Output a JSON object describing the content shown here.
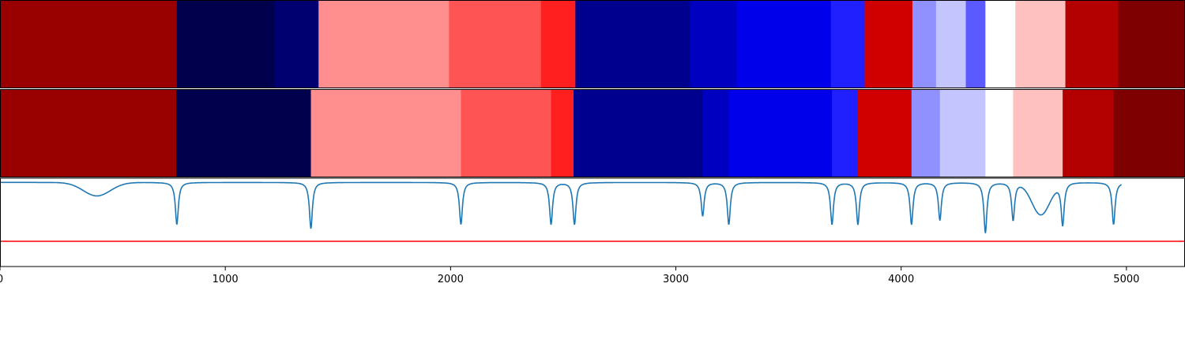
{
  "chart_data": {
    "type": "heatmap",
    "title": "",
    "xlabel": "",
    "ylabel": "",
    "xlim": [
      0,
      5260
    ],
    "x_ticks": [
      0,
      1000,
      2000,
      3000,
      4000,
      5000
    ],
    "x_tick_labels": [
      "0",
      "1000",
      "2000",
      "3000",
      "4000",
      "5000"
    ],
    "grid": false,
    "legend": "none",
    "tracks": [
      {
        "segments": [
          {
            "start": 0,
            "end": 785,
            "color": "#990000"
          },
          {
            "start": 785,
            "end": 1218,
            "color": "#00004c"
          },
          {
            "start": 1218,
            "end": 1414,
            "color": "#000070"
          },
          {
            "start": 1414,
            "end": 1993,
            "color": "#ff8e8e"
          },
          {
            "start": 1993,
            "end": 2401,
            "color": "#ff5454"
          },
          {
            "start": 2401,
            "end": 2554,
            "color": "#ff1f1f"
          },
          {
            "start": 2554,
            "end": 3062,
            "color": "#00008f"
          },
          {
            "start": 3062,
            "end": 3270,
            "color": "#0000c0"
          },
          {
            "start": 3270,
            "end": 3688,
            "color": "#0000ea"
          },
          {
            "start": 3688,
            "end": 3838,
            "color": "#2020ff"
          },
          {
            "start": 3838,
            "end": 4050,
            "color": "#d10000"
          },
          {
            "start": 4050,
            "end": 4155,
            "color": "#9090ff"
          },
          {
            "start": 4155,
            "end": 4287,
            "color": "#c4c4ff"
          },
          {
            "start": 4287,
            "end": 4374,
            "color": "#5a5aff"
          },
          {
            "start": 4374,
            "end": 4507,
            "color": "#ffffff"
          },
          {
            "start": 4507,
            "end": 4729,
            "color": "#ffc0c0"
          },
          {
            "start": 4729,
            "end": 4964,
            "color": "#b30000"
          },
          {
            "start": 4964,
            "end": 5260,
            "color": "#7f0000"
          }
        ]
      },
      {
        "segments": [
          {
            "start": 0,
            "end": 782,
            "color": "#990000"
          },
          {
            "start": 782,
            "end": 1380,
            "color": "#00004c"
          },
          {
            "start": 1380,
            "end": 2046,
            "color": "#ff8e8e"
          },
          {
            "start": 2046,
            "end": 2446,
            "color": "#ff5454"
          },
          {
            "start": 2446,
            "end": 2546,
            "color": "#ff1f1f"
          },
          {
            "start": 2546,
            "end": 3119,
            "color": "#00008f"
          },
          {
            "start": 3119,
            "end": 3235,
            "color": "#0000c0"
          },
          {
            "start": 3235,
            "end": 3693,
            "color": "#0000ea"
          },
          {
            "start": 3693,
            "end": 3808,
            "color": "#2020ff"
          },
          {
            "start": 3808,
            "end": 4046,
            "color": "#d10000"
          },
          {
            "start": 4046,
            "end": 4172,
            "color": "#9090ff"
          },
          {
            "start": 4172,
            "end": 4374,
            "color": "#c4c4ff"
          },
          {
            "start": 4374,
            "end": 4497,
            "color": "#ffffff"
          },
          {
            "start": 4497,
            "end": 4717,
            "color": "#ffc0c0"
          },
          {
            "start": 4717,
            "end": 4943,
            "color": "#b30000"
          },
          {
            "start": 4943,
            "end": 5260,
            "color": "#7f0000"
          }
        ]
      }
    ],
    "signal": {
      "color": "#1f77b4",
      "ylim": [
        -1.0,
        0.05
      ],
      "baseline": 0,
      "dips": [
        {
          "x": 785,
          "depth": 0.5
        },
        {
          "x": 1380,
          "depth": 0.55
        },
        {
          "x": 2046,
          "depth": 0.5
        },
        {
          "x": 2446,
          "depth": 0.5
        },
        {
          "x": 2550,
          "depth": 0.5
        },
        {
          "x": 3119,
          "depth": 0.4
        },
        {
          "x": 3235,
          "depth": 0.5
        },
        {
          "x": 3693,
          "depth": 0.5
        },
        {
          "x": 3808,
          "depth": 0.5
        },
        {
          "x": 4046,
          "depth": 0.5
        },
        {
          "x": 4172,
          "depth": 0.45
        },
        {
          "x": 4374,
          "depth": 0.6
        },
        {
          "x": 4497,
          "depth": 0.45
        },
        {
          "x": 4717,
          "depth": 0.5
        },
        {
          "x": 4943,
          "depth": 0.5
        }
      ],
      "bumps": [
        {
          "x": 430,
          "depth": 0.16,
          "width": 60
        },
        {
          "x": 4620,
          "depth": 0.38,
          "width": 40
        }
      ],
      "threshold": {
        "value": -0.7,
        "color": "#ff0000"
      }
    }
  }
}
